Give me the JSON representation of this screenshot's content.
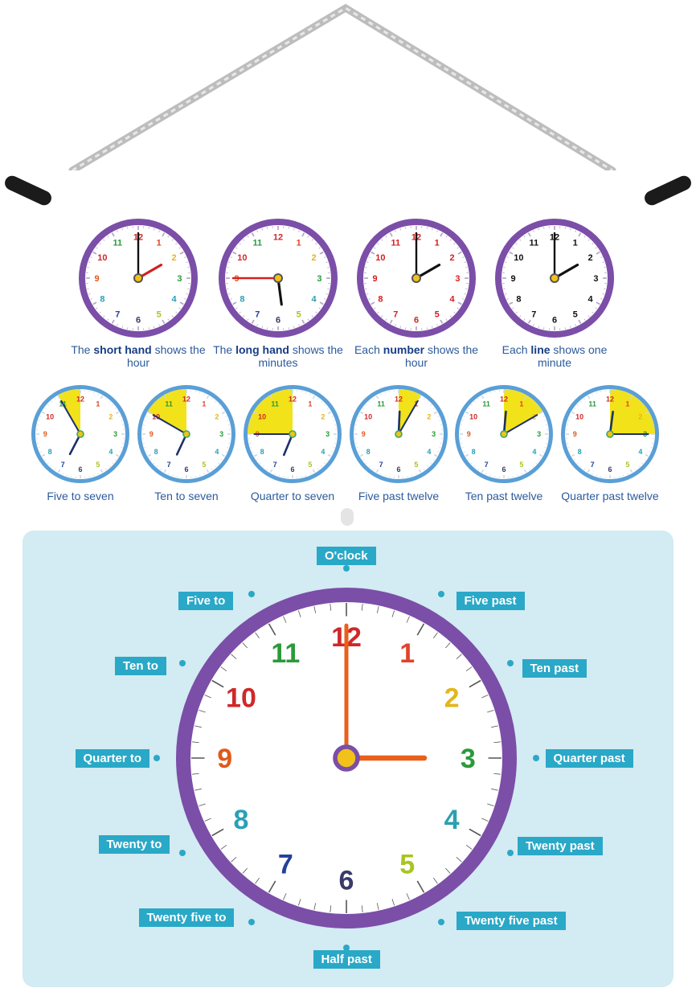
{
  "colors": {
    "purple": "#7b4ea8",
    "blue_ring": "#5a9fd6",
    "teal": "#2aa8c7",
    "panel": "#d3ebf2",
    "yellow": "#f2e21a"
  },
  "number_colors": [
    "#d0282a",
    "#e0442a",
    "#e2b61c",
    "#2a9a3a",
    "#2aa0b0",
    "#a8c520",
    "#3a3a6a",
    "#22419a",
    "#2aa0b8",
    "#e05a1a",
    "#d0282a",
    "#2a9a3a"
  ],
  "top_row": [
    {
      "hour": 2,
      "minute": 0,
      "numbers": "colored",
      "hour_hand": "red",
      "minute_hand": "black",
      "caption_pre": "The ",
      "caption_bold": "short hand",
      "caption_post": " shows the hour"
    },
    {
      "hour": 5,
      "minute": 45,
      "numbers": "colored",
      "hour_hand": "black",
      "minute_hand": "red",
      "caption_pre": "The ",
      "caption_bold": "long hand",
      "caption_post": " shows the minutes"
    },
    {
      "hour": 2,
      "minute": 0,
      "numbers": "red",
      "hour_hand": "black",
      "minute_hand": "black",
      "caption_pre": "Each ",
      "caption_bold": "number",
      "caption_post": " shows the hour"
    },
    {
      "hour": 2,
      "minute": 0,
      "numbers": "black",
      "hour_hand": "black",
      "minute_hand": "black",
      "caption_pre": "Each ",
      "caption_bold": "line",
      "caption_post": " shows one minute"
    }
  ],
  "middle_row": [
    {
      "hour": 6,
      "minute": 55,
      "sector": "to",
      "caption": "Five to seven"
    },
    {
      "hour": 6,
      "minute": 50,
      "sector": "to",
      "caption": "Ten to seven"
    },
    {
      "hour": 6,
      "minute": 45,
      "sector": "to",
      "caption": "Quarter to seven"
    },
    {
      "hour": 12,
      "minute": 5,
      "sector": "past",
      "caption": "Five past twelve"
    },
    {
      "hour": 12,
      "minute": 10,
      "sector": "past",
      "caption": "Ten past twelve"
    },
    {
      "hour": 12,
      "minute": 15,
      "sector": "past",
      "caption": "Quarter past twelve"
    }
  ],
  "big_clock": {
    "hour": 3,
    "minute": 0,
    "labels": [
      "O'clock",
      "Five past",
      "Ten past",
      "Quarter past",
      "Twenty past",
      "Twenty five past",
      "Half past",
      "Twenty five to",
      "Twenty to",
      "Quarter to",
      "Ten to",
      "Five to"
    ]
  }
}
